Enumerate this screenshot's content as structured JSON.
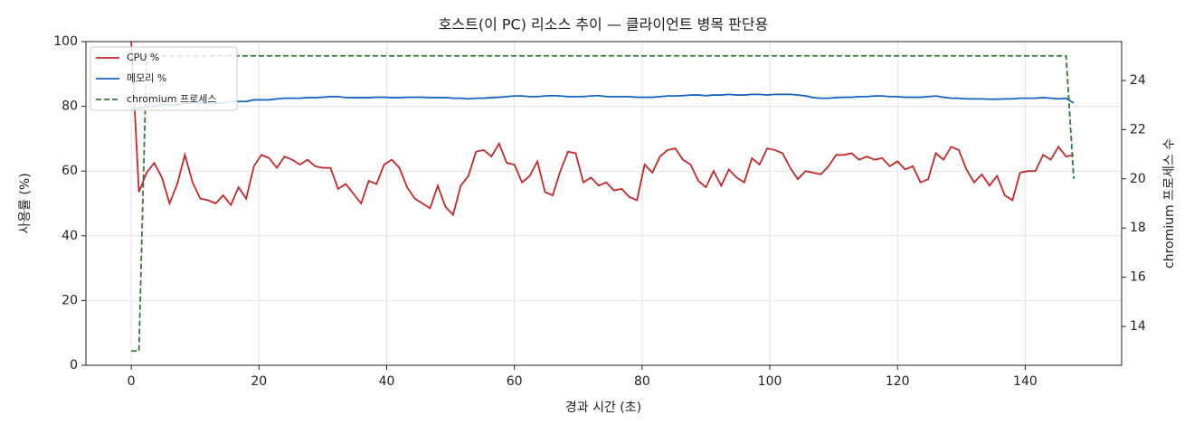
{
  "chart_data": {
    "type": "line",
    "title": "호스트(이 PC) 리소스 추이 — 클라이언트 병목 판단용",
    "x_label": "경과 시간 (초)",
    "y_label": "사용률 (%)",
    "y2_label": "chromium 프로세스 수",
    "x": [
      0,
      1.2,
      2.4,
      3.6,
      4.8,
      6,
      7.2,
      8.4,
      9.6,
      10.8,
      12,
      13.2,
      14.4,
      15.6,
      16.8,
      18,
      19.2,
      20.4,
      21.6,
      22.8,
      24,
      25.2,
      26.4,
      27.6,
      28.8,
      30,
      31.2,
      32.4,
      33.6,
      34.8,
      36,
      37.2,
      38.4,
      39.6,
      40.8,
      42,
      43.2,
      44.4,
      45.6,
      46.8,
      48,
      49.2,
      50.4,
      51.6,
      52.8,
      54,
      55.2,
      56.4,
      57.6,
      58.8,
      60,
      61.2,
      62.4,
      63.6,
      64.8,
      66,
      67.2,
      68.4,
      69.6,
      70.8,
      72,
      73.2,
      74.4,
      75.6,
      76.8,
      78,
      79.2,
      80.4,
      81.6,
      82.8,
      84,
      85.2,
      86.4,
      87.6,
      88.8,
      90,
      91.2,
      92.4,
      93.6,
      94.8,
      96,
      97.2,
      98.4,
      99.6,
      100.8,
      102,
      103.2,
      104.4,
      105.6,
      106.8,
      108,
      109.2,
      110.4,
      111.6,
      112.8,
      114,
      115.2,
      116.4,
      117.6,
      118.8,
      120,
      121.2,
      122.4,
      123.6,
      124.8,
      126,
      127.2,
      128.4,
      129.6,
      130.8,
      132,
      133.2,
      134.4,
      135.6,
      136.8,
      138,
      139.2,
      140.4,
      141.6,
      142.8,
      144,
      145.2,
      146.4,
      147.6
    ],
    "series": [
      {
        "name": "CPU %",
        "color": "#c62828",
        "style": "solid",
        "values": [
          100,
          53.5,
          59.5,
          62.5,
          58,
          50,
          56,
          65,
          56.5,
          51.5,
          51,
          50,
          52.5,
          49.5,
          55,
          51.5,
          61.5,
          65,
          64,
          61,
          64.5,
          63.5,
          62,
          63.5,
          61.5,
          61,
          61,
          54.5,
          56,
          53,
          50,
          57,
          56,
          62,
          63.5,
          61,
          55,
          51.5,
          50,
          48.5,
          55.5,
          49,
          46.5,
          55.5,
          58.5,
          66,
          66.5,
          64.5,
          68.5,
          62.5,
          62,
          56.5,
          58.5,
          63,
          53.5,
          52.5,
          60,
          66,
          65.5,
          56.5,
          58,
          55.5,
          56.5,
          54,
          54.5,
          52,
          51,
          62,
          59.5,
          64.5,
          66.5,
          67,
          63.5,
          62,
          57,
          55,
          60,
          55.5,
          60.5,
          58,
          56.5,
          64,
          62,
          67,
          66.5,
          65.5,
          61,
          57.5,
          60,
          59.5,
          59,
          61.5,
          65,
          65,
          65.5,
          63.5,
          64.5,
          63.5,
          64,
          61.5,
          63,
          60.5,
          61.5,
          56.5,
          57.5,
          65.5,
          63.5,
          67.5,
          66.5,
          60.5,
          56.5,
          59,
          55.5,
          58.5,
          52.5,
          51,
          59.5,
          60,
          60,
          65,
          63.5,
          67.5,
          64.5,
          65
        ]
      },
      {
        "name": "메모리 %",
        "color": "#1565c0",
        "style": "solid",
        "values": [
          79,
          79.5,
          80,
          80,
          80.5,
          80.5,
          80.5,
          81,
          81,
          81,
          81,
          81,
          81,
          81.5,
          81.5,
          81.5,
          82,
          82,
          82,
          82.3,
          82.5,
          82.5,
          82.5,
          82.7,
          82.7,
          82.8,
          83,
          83,
          82.7,
          82.7,
          82.7,
          82.7,
          82.8,
          82.8,
          82.7,
          82.7,
          82.8,
          82.8,
          82.8,
          82.7,
          82.7,
          82.7,
          82.5,
          82.5,
          82.3,
          82.5,
          82.5,
          82.7,
          82.8,
          83,
          83.2,
          83.2,
          83,
          83,
          83.2,
          83.3,
          83.2,
          83,
          83,
          83,
          83.2,
          83.3,
          83,
          83,
          83,
          83,
          82.8,
          82.8,
          82.8,
          83,
          83.2,
          83.2,
          83.3,
          83.5,
          83.5,
          83.3,
          83.5,
          83.5,
          83.7,
          83.5,
          83.5,
          83.7,
          83.7,
          83.5,
          83.7,
          83.7,
          83.7,
          83.5,
          83.2,
          82.7,
          82.5,
          82.5,
          82.7,
          82.8,
          82.8,
          83,
          83,
          83.2,
          83.2,
          83,
          83,
          82.8,
          82.8,
          82.8,
          83,
          83.2,
          82.8,
          82.5,
          82.5,
          82.3,
          82.3,
          82.3,
          82.2,
          82.2,
          82.3,
          82.3,
          82.5,
          82.5,
          82.5,
          82.7,
          82.5,
          82.3,
          82.5,
          81
        ]
      },
      {
        "name": "chromium 프로세스",
        "color": "#2e7d32",
        "style": "dashed",
        "axis": "y2",
        "values": [
          13,
          13,
          25,
          25,
          25,
          25,
          25,
          25,
          25,
          25,
          25,
          25,
          25,
          25,
          25,
          25,
          25,
          25,
          25,
          25,
          25,
          25,
          25,
          25,
          25,
          25,
          25,
          25,
          25,
          25,
          25,
          25,
          25,
          25,
          25,
          25,
          25,
          25,
          25,
          25,
          25,
          25,
          25,
          25,
          25,
          25,
          25,
          25,
          25,
          25,
          25,
          25,
          25,
          25,
          25,
          25,
          25,
          25,
          25,
          25,
          25,
          25,
          25,
          25,
          25,
          25,
          25,
          25,
          25,
          25,
          25,
          25,
          25,
          25,
          25,
          25,
          25,
          25,
          25,
          25,
          25,
          25,
          25,
          25,
          25,
          25,
          25,
          25,
          25,
          25,
          25,
          25,
          25,
          25,
          25,
          25,
          25,
          25,
          25,
          25,
          25,
          25,
          25,
          25,
          25,
          25,
          25,
          25,
          25,
          25,
          25,
          25,
          25,
          25,
          25,
          25,
          25,
          25,
          25,
          25,
          25,
          25,
          25,
          20
        ]
      }
    ],
    "xlim": [
      -7.1,
      155.1
    ],
    "xticks": [
      0,
      20,
      40,
      60,
      80,
      100,
      120,
      140
    ],
    "ylim": [
      0,
      100
    ],
    "yticks": [
      0,
      20,
      40,
      60,
      80,
      100
    ],
    "y2lim": [
      12.42,
      25.58
    ],
    "y2ticks": [
      14,
      16,
      18,
      20,
      22,
      24
    ],
    "grid": true,
    "legend": "upper-left"
  }
}
